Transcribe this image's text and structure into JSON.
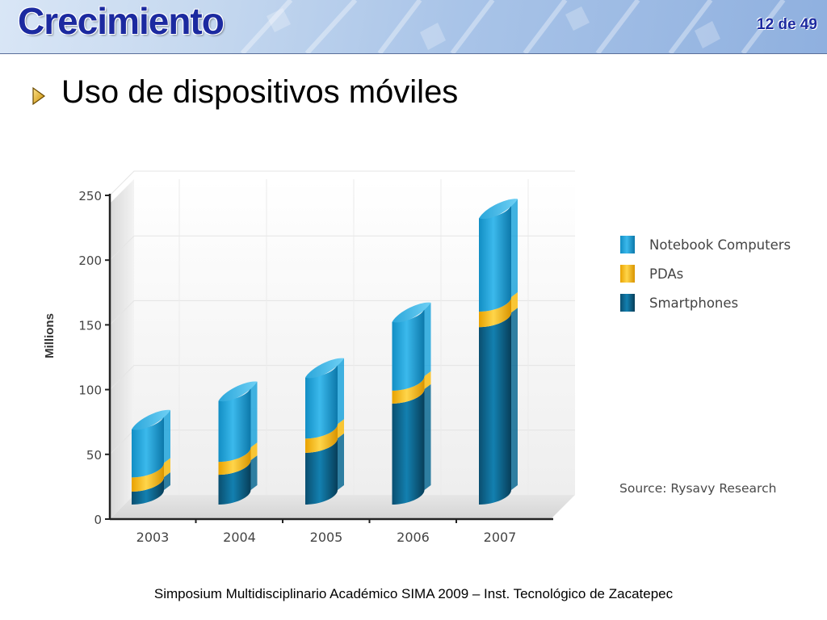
{
  "header": {
    "title": "Crecimiento",
    "page_count": "12 de 49"
  },
  "content": {
    "bullet_text": "Uso de dispositivos móviles"
  },
  "footer": {
    "text": "Simposium Multidisciplinario Académico  SIMA 2009 – Inst. Tecnológico  de Zacatepec"
  },
  "chart_data": {
    "type": "bar",
    "stacked": true,
    "categories": [
      "2003",
      "2004",
      "2005",
      "2006",
      "2007"
    ],
    "series": [
      {
        "name": "Smartphones",
        "values": [
          10,
          23,
          40,
          78,
          137
        ],
        "color": "#0c6a93"
      },
      {
        "name": "PDAs",
        "values": [
          11,
          10,
          11,
          10,
          12
        ],
        "color": "#f9bd13"
      },
      {
        "name": "Notebook Computers",
        "values": [
          37,
          47,
          47,
          53,
          72
        ],
        "color": "#1ea4dc"
      }
    ],
    "ylabel": "Millions",
    "ylim": [
      0,
      250
    ],
    "yticks": [
      0,
      50,
      100,
      150,
      200,
      250
    ],
    "grid": true,
    "legend": [
      "Notebook Computers",
      "PDAs",
      "Smartphones"
    ],
    "legend_position": "right",
    "source": "Source: Rysavy Research"
  }
}
